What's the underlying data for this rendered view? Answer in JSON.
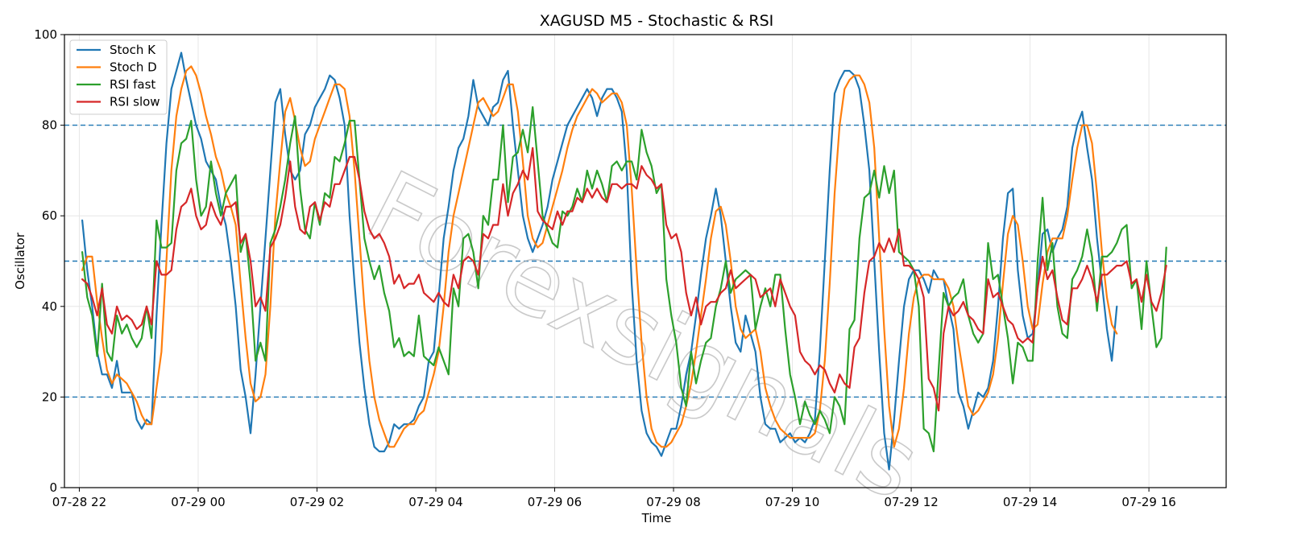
{
  "chart_data": {
    "type": "line",
    "title": "XAGUSD M5 - Stochastic & RSI",
    "xlabel": "Time",
    "ylabel": "Oscillator",
    "ylim": [
      0,
      100
    ],
    "yticks": [
      0,
      20,
      40,
      60,
      80,
      100
    ],
    "x_range_hours": [
      -2.25,
      17.3
    ],
    "x_start_hour": -1.95,
    "x_step_hours": 0.0833,
    "x_ticks": [
      {
        "hour": -2,
        "label": "07-28 22"
      },
      {
        "hour": 0,
        "label": "07-29 00"
      },
      {
        "hour": 2,
        "label": "07-29 02"
      },
      {
        "hour": 4,
        "label": "07-29 04"
      },
      {
        "hour": 6,
        "label": "07-29 06"
      },
      {
        "hour": 8,
        "label": "07-29 08"
      },
      {
        "hour": 10,
        "label": "07-29 10"
      },
      {
        "hour": 12,
        "label": "07-29 12"
      },
      {
        "hour": 14,
        "label": "07-29 14"
      },
      {
        "hour": 16,
        "label": "07-29 16"
      }
    ],
    "reference_lines": [
      80,
      50,
      20
    ],
    "grid": true,
    "legend_position": "top-left",
    "watermark": "Forexsignals",
    "series": [
      {
        "name": "Stoch K",
        "color": "#1f77b4",
        "values": [
          59,
          48,
          40,
          30,
          25,
          25,
          22,
          28,
          21,
          21,
          21,
          15,
          13,
          15,
          14,
          38,
          58,
          76,
          88,
          92,
          96,
          90,
          85,
          80,
          77,
          72,
          70,
          68,
          62,
          58,
          50,
          40,
          26,
          20,
          12,
          25,
          40,
          55,
          70,
          85,
          88,
          78,
          70,
          68,
          70,
          78,
          80,
          84,
          86,
          88,
          91,
          90,
          86,
          80,
          60,
          45,
          32,
          22,
          14,
          9,
          8,
          8,
          10,
          14,
          13,
          14,
          14,
          15,
          18,
          20,
          28,
          30,
          42,
          55,
          62,
          70,
          75,
          77,
          82,
          90,
          84,
          82,
          80,
          84,
          85,
          90,
          92,
          80,
          70,
          60,
          55,
          52,
          55,
          58,
          62,
          68,
          72,
          76,
          80,
          82,
          84,
          86,
          88,
          86,
          82,
          86,
          88,
          88,
          86,
          83,
          70,
          45,
          28,
          17,
          12,
          10,
          9,
          7,
          10,
          13,
          13,
          18,
          25,
          30,
          38,
          47,
          55,
          60,
          66,
          60,
          50,
          40,
          32,
          30,
          38,
          34,
          30,
          20,
          14,
          13,
          13,
          10,
          11,
          12,
          10,
          11,
          10,
          12,
          15,
          30,
          50,
          70,
          87,
          90,
          92,
          92,
          91,
          88,
          80,
          70,
          50,
          30,
          12,
          4,
          15,
          28,
          40,
          46,
          48,
          48,
          46,
          43,
          48,
          46,
          46,
          40,
          35,
          21,
          18,
          13,
          17,
          21,
          20,
          22,
          28,
          40,
          55,
          65,
          66,
          48,
          38,
          33,
          34,
          44,
          56,
          57,
          52,
          55,
          57,
          62,
          75,
          80,
          83,
          75,
          68,
          55,
          45,
          35,
          28,
          40
        ]
      },
      {
        "name": "Stoch D",
        "color": "#ff7f0e",
        "values": [
          48,
          51,
          51,
          41,
          33,
          26,
          23,
          25,
          24,
          23,
          21,
          19,
          16,
          14,
          14,
          22,
          30,
          50,
          70,
          82,
          88,
          92,
          93,
          91,
          87,
          82,
          78,
          73,
          70,
          65,
          62,
          58,
          45,
          33,
          23,
          19,
          20,
          25,
          40,
          60,
          72,
          83,
          86,
          81,
          75,
          71,
          72,
          77,
          80,
          83,
          86,
          89,
          89,
          88,
          82,
          70,
          55,
          40,
          28,
          20,
          15,
          12,
          9,
          9,
          11,
          13,
          14,
          14,
          16,
          17,
          21,
          25,
          30,
          40,
          52,
          60,
          65,
          70,
          75,
          80,
          85,
          86,
          84,
          82,
          83,
          86,
          89,
          89,
          83,
          72,
          60,
          55,
          53,
          54,
          58,
          62,
          66,
          70,
          75,
          79,
          82,
          84,
          86,
          88,
          87,
          85,
          86,
          87,
          87,
          85,
          80,
          66,
          48,
          32,
          20,
          13,
          10,
          9,
          9,
          10,
          12,
          14,
          18,
          23,
          30,
          38,
          46,
          55,
          61,
          62,
          58,
          50,
          40,
          35,
          33,
          34,
          35,
          30,
          22,
          18,
          15,
          13,
          12,
          11,
          11,
          11,
          11,
          11,
          12,
          17,
          28,
          45,
          65,
          80,
          88,
          90,
          91,
          91,
          89,
          85,
          75,
          55,
          35,
          18,
          9,
          13,
          22,
          34,
          42,
          46,
          47,
          47,
          46,
          46,
          46,
          44,
          40,
          32,
          25,
          18,
          16,
          17,
          19,
          21,
          25,
          33,
          45,
          56,
          60,
          58,
          50,
          40,
          35,
          36,
          45,
          52,
          55,
          55,
          55,
          60,
          68,
          75,
          80,
          80,
          76,
          65,
          52,
          42,
          36,
          34
        ]
      },
      {
        "name": "RSI fast",
        "color": "#2ca02c",
        "values": [
          52,
          42,
          38,
          29,
          45,
          30,
          28,
          38,
          34,
          36,
          33,
          31,
          33,
          40,
          33,
          59,
          53,
          53,
          54,
          70,
          76,
          77,
          81,
          68,
          60,
          62,
          72,
          65,
          60,
          65,
          67,
          69,
          52,
          56,
          45,
          28,
          32,
          28,
          54,
          57,
          62,
          68,
          76,
          82,
          66,
          57,
          55,
          63,
          58,
          65,
          64,
          73,
          72,
          76,
          81,
          81,
          68,
          55,
          50,
          46,
          49,
          43,
          39,
          31,
          33,
          29,
          30,
          29,
          38,
          29,
          28,
          27,
          31,
          28,
          25,
          44,
          40,
          55,
          56,
          52,
          44,
          60,
          58,
          68,
          68,
          80,
          63,
          73,
          74,
          79,
          74,
          84,
          72,
          60,
          57,
          54,
          53,
          61,
          60,
          62,
          66,
          63,
          70,
          66,
          70,
          67,
          63,
          71,
          72,
          70,
          72,
          72,
          68,
          79,
          74,
          71,
          65,
          67,
          46,
          38,
          32,
          22,
          18,
          30,
          23,
          28,
          32,
          33,
          40,
          44,
          50,
          43,
          46,
          47,
          48,
          47,
          35,
          40,
          44,
          40,
          47,
          47,
          35,
          25,
          20,
          14,
          19,
          16,
          14,
          17,
          15,
          12,
          20,
          18,
          14,
          35,
          37,
          55,
          64,
          65,
          70,
          64,
          71,
          65,
          70,
          52,
          51,
          50,
          48,
          40,
          13,
          12,
          8,
          26,
          43,
          40,
          42,
          43,
          46,
          38,
          34,
          32,
          34,
          54,
          46,
          47,
          40,
          33,
          23,
          32,
          31,
          28,
          28,
          50,
          64,
          48,
          54,
          40,
          34,
          33,
          46,
          48,
          51,
          57,
          51,
          39,
          51,
          51,
          52,
          54,
          57,
          58,
          44,
          46,
          35,
          50,
          40,
          31,
          33,
          53
        ]
      },
      {
        "name": "RSI slow",
        "color": "#d62728",
        "values": [
          46,
          45,
          42,
          38,
          44,
          36,
          34,
          40,
          37,
          38,
          37,
          35,
          36,
          40,
          36,
          50,
          47,
          47,
          48,
          57,
          62,
          63,
          66,
          60,
          57,
          58,
          63,
          60,
          58,
          62,
          62,
          63,
          54,
          56,
          50,
          40,
          42,
          39,
          53,
          55,
          58,
          64,
          72,
          62,
          57,
          56,
          62,
          63,
          59,
          63,
          62,
          67,
          67,
          70,
          73,
          73,
          68,
          61,
          57,
          55,
          56,
          54,
          51,
          45,
          47,
          44,
          45,
          45,
          47,
          43,
          42,
          41,
          43,
          41,
          40,
          47,
          44,
          50,
          51,
          50,
          47,
          56,
          55,
          58,
          58,
          67,
          60,
          65,
          67,
          70,
          68,
          75,
          61,
          59,
          58,
          57,
          61,
          58,
          61,
          61,
          64,
          63,
          66,
          64,
          66,
          64,
          63,
          67,
          67,
          66,
          67,
          67,
          66,
          71,
          69,
          68,
          66,
          67,
          58,
          55,
          56,
          52,
          43,
          38,
          42,
          36,
          40,
          41,
          41,
          43,
          44,
          48,
          44,
          45,
          46,
          47,
          46,
          42,
          43,
          44,
          40,
          46,
          43,
          40,
          38,
          30,
          28,
          27,
          25,
          27,
          26,
          23,
          21,
          25,
          23,
          22,
          31,
          33,
          43,
          50,
          51,
          54,
          52,
          55,
          52,
          57,
          49,
          49,
          48,
          46,
          42,
          24,
          22,
          17,
          34,
          40,
          38,
          39,
          41,
          38,
          37,
          35,
          34,
          46,
          42,
          43,
          40,
          37,
          36,
          33,
          32,
          33,
          32,
          44,
          51,
          46,
          48,
          42,
          37,
          36,
          44,
          44,
          46,
          49,
          46,
          41,
          47,
          47,
          48,
          49,
          49,
          50,
          45,
          46,
          41,
          47,
          41,
          39,
          43,
          49
        ]
      }
    ]
  }
}
